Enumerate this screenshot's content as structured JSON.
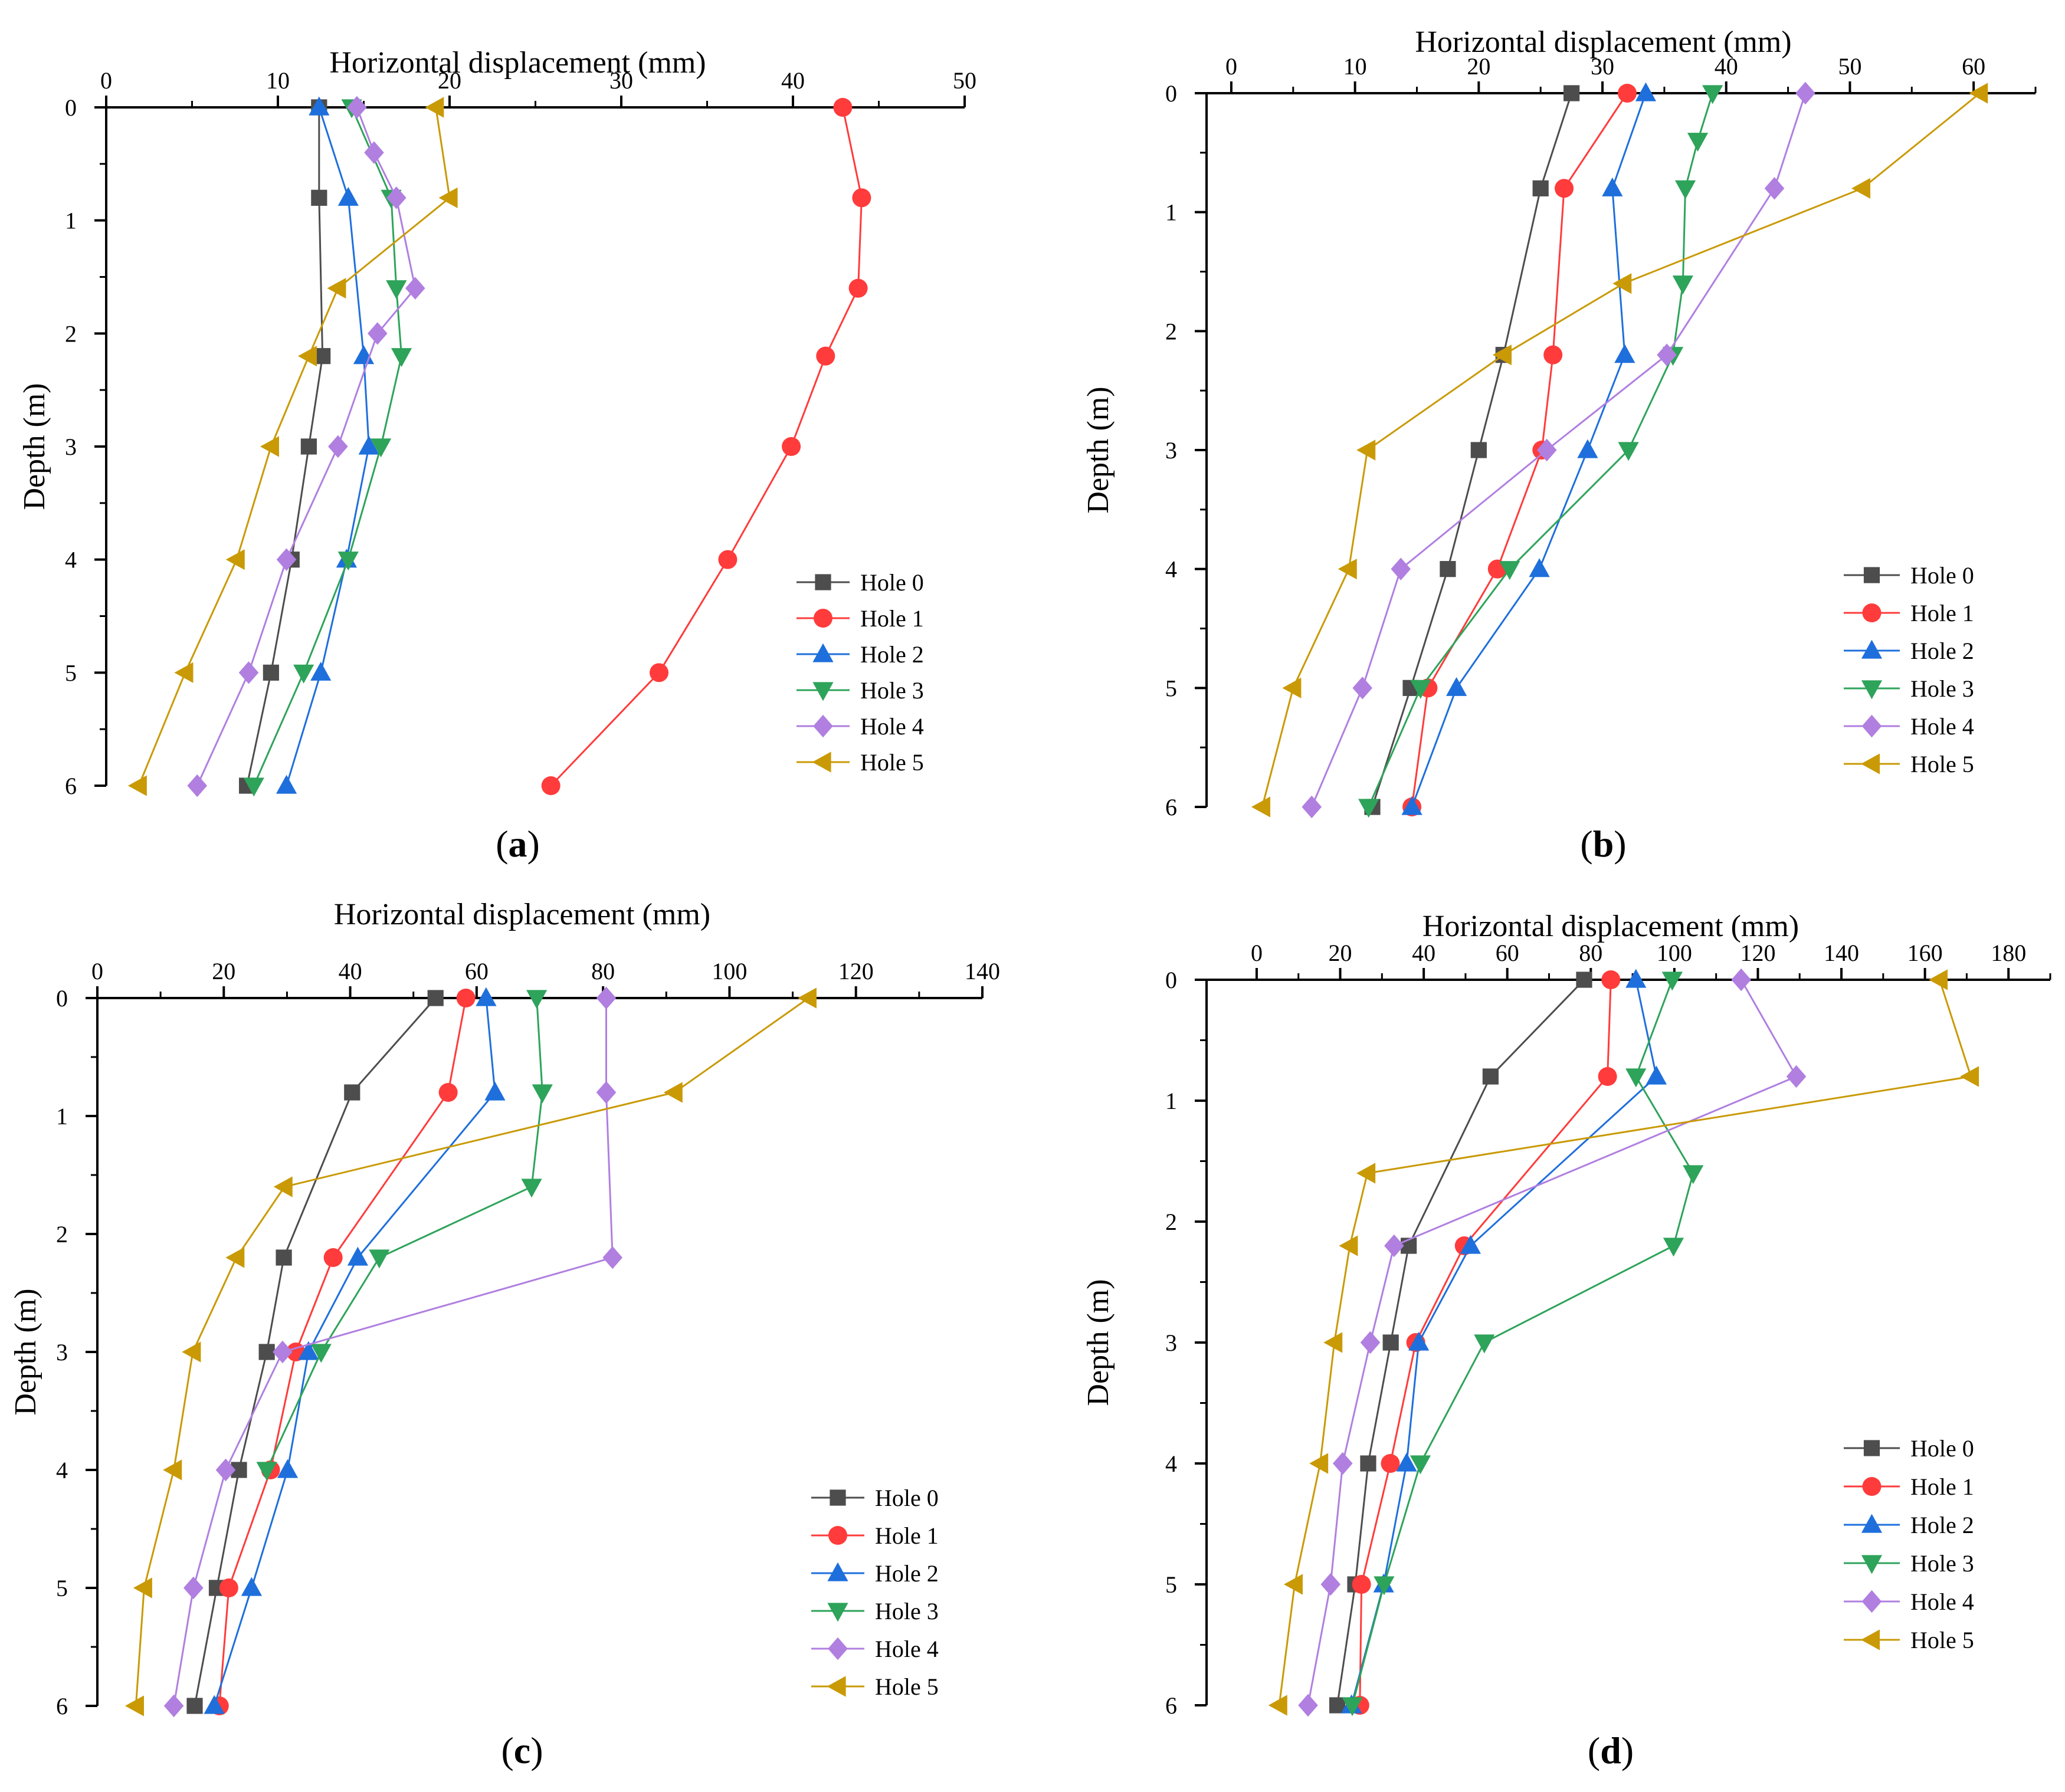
{
  "chart_data": [
    {
      "type": "line",
      "panel_label": "a",
      "xlabel": "Horizontal displacement (mm)",
      "ylabel": "Depth (m)",
      "xlim": [
        0,
        50
      ],
      "ylim": [
        0,
        6
      ],
      "x_ticks": [
        0,
        10,
        20,
        30,
        40,
        50
      ],
      "y_ticks": [
        0,
        1,
        2,
        3,
        4,
        5,
        6
      ],
      "legend_position": "bottom-right",
      "depth": [
        0,
        0.8,
        1.6,
        2.2,
        3,
        4,
        5,
        6
      ],
      "series": [
        {
          "name": "Hole  0",
          "color": "#4d4d4d",
          "marker": "square",
          "points": [
            [
              12.4,
              0
            ],
            [
              12.4,
              0.8
            ],
            [
              12.6,
              2.2
            ],
            [
              11.8,
              3
            ],
            [
              10.8,
              4
            ],
            [
              9.6,
              5
            ],
            [
              8.2,
              6
            ]
          ]
        },
        {
          "name": "Hole  1",
          "color": "#ff3b3b",
          "marker": "circle",
          "points": [
            [
              42.9,
              0
            ],
            [
              44,
              0.8
            ],
            [
              43.8,
              1.6
            ],
            [
              41.9,
              2.2
            ],
            [
              39.9,
              3
            ],
            [
              36.2,
              4
            ],
            [
              32.2,
              5
            ],
            [
              25.9,
              6
            ]
          ]
        },
        {
          "name": "Hole  2",
          "color": "#1e6fdc",
          "marker": "triangle-up",
          "points": [
            [
              12.4,
              0
            ],
            [
              14.1,
              0.8
            ],
            [
              15,
              2.2
            ],
            [
              15.3,
              3
            ],
            [
              14,
              4
            ],
            [
              12.5,
              5
            ],
            [
              10.5,
              6
            ]
          ]
        },
        {
          "name": "Hole  3",
          "color": "#2ea35a",
          "marker": "triangle-down",
          "points": [
            [
              14.3,
              0
            ],
            [
              16.6,
              0.8
            ],
            [
              16.9,
              1.6
            ],
            [
              17.2,
              2.2
            ],
            [
              16,
              3
            ],
            [
              14.1,
              4
            ],
            [
              11.5,
              5
            ],
            [
              8.6,
              6
            ]
          ]
        },
        {
          "name": "Hole  4",
          "color": "#b07fe0",
          "marker": "diamond",
          "points": [
            [
              14.6,
              0
            ],
            [
              15.6,
              0.4
            ],
            [
              16.9,
              0.8
            ],
            [
              18,
              1.6
            ],
            [
              15.8,
              2
            ],
            [
              13.5,
              3
            ],
            [
              10.5,
              4
            ],
            [
              8.3,
              5
            ],
            [
              5.3,
              6
            ]
          ]
        },
        {
          "name": "Hole  5",
          "color": "#c99a06",
          "marker": "triangle-left",
          "points": [
            [
              19.2,
              0
            ],
            [
              20,
              0.8
            ],
            [
              13.5,
              1.6
            ],
            [
              11.8,
              2.2
            ],
            [
              9.6,
              3
            ],
            [
              7.6,
              4
            ],
            [
              4.6,
              5
            ],
            [
              1.9,
              6
            ]
          ]
        }
      ]
    },
    {
      "type": "line",
      "panel_label": "b",
      "xlabel": "Horizontal displacement (mm)",
      "ylabel": "Depth (m)",
      "xlim": [
        -2,
        65
      ],
      "ylim": [
        0,
        6
      ],
      "x_ticks": [
        0,
        10,
        20,
        30,
        40,
        50,
        60
      ],
      "y_ticks": [
        0,
        1,
        2,
        3,
        4,
        5,
        6
      ],
      "legend_position": "bottom-right",
      "series": [
        {
          "name": "Hole 0",
          "color": "#4d4d4d",
          "marker": "square",
          "points": [
            [
              27.5,
              0
            ],
            [
              25,
              0.8
            ],
            [
              22,
              2.2
            ],
            [
              20,
              3
            ],
            [
              17.5,
              4
            ],
            [
              14.5,
              5
            ],
            [
              11.4,
              6
            ]
          ]
        },
        {
          "name": "Hole 1",
          "color": "#ff3b3b",
          "marker": "circle",
          "points": [
            [
              32,
              0
            ],
            [
              26.9,
              0.8
            ],
            [
              26,
              2.2
            ],
            [
              25.1,
              3
            ],
            [
              21.5,
              4
            ],
            [
              15.9,
              5
            ],
            [
              14.6,
              6
            ]
          ]
        },
        {
          "name": "Hole 2",
          "color": "#1e6fdc",
          "marker": "triangle-up",
          "points": [
            [
              33.5,
              0
            ],
            [
              30.8,
              0.8
            ],
            [
              31.8,
              2.2
            ],
            [
              28.8,
              3
            ],
            [
              24.9,
              4
            ],
            [
              18.2,
              5
            ],
            [
              14.6,
              6
            ]
          ]
        },
        {
          "name": "Hole 3",
          "color": "#2ea35a",
          "marker": "triangle-down",
          "points": [
            [
              38.9,
              0
            ],
            [
              37.7,
              0.4
            ],
            [
              36.7,
              0.8
            ],
            [
              36.5,
              1.6
            ],
            [
              35.7,
              2.2
            ],
            [
              32.1,
              3
            ],
            [
              22.5,
              4
            ],
            [
              15.3,
              5
            ],
            [
              11.1,
              6
            ]
          ]
        },
        {
          "name": "Hole 4",
          "color": "#b07fe0",
          "marker": "diamond",
          "points": [
            [
              46.4,
              0
            ],
            [
              43.9,
              0.8
            ],
            [
              35.2,
              2.2
            ],
            [
              25.5,
              3
            ],
            [
              13.7,
              4
            ],
            [
              10.6,
              5
            ],
            [
              6.5,
              6
            ]
          ]
        },
        {
          "name": "Hole 5",
          "color": "#c99a06",
          "marker": "triangle-left",
          "points": [
            [
              60.5,
              0
            ],
            [
              51,
              0.8
            ],
            [
              31.7,
              1.6
            ],
            [
              22,
              2.2
            ],
            [
              11,
              3
            ],
            [
              9.5,
              4
            ],
            [
              5,
              5
            ],
            [
              2.5,
              6
            ]
          ]
        }
      ]
    },
    {
      "type": "line",
      "panel_label": "c",
      "xlabel": "Horizontal displacement (mm)",
      "ylabel": "Depth (m)",
      "xlim": [
        0,
        140
      ],
      "ylim": [
        0,
        6
      ],
      "x_ticks": [
        0,
        20,
        40,
        60,
        80,
        100,
        120,
        140
      ],
      "y_ticks": [
        0,
        1,
        2,
        3,
        4,
        5,
        6
      ],
      "legend_position": "bottom-right",
      "series": [
        {
          "name": "Hole  0",
          "color": "#4d4d4d",
          "marker": "square",
          "points": [
            [
              53.5,
              0
            ],
            [
              40.3,
              0.8
            ],
            [
              29.5,
              2.2
            ],
            [
              26.8,
              3
            ],
            [
              22.4,
              4
            ],
            [
              18.9,
              5
            ],
            [
              15.4,
              6
            ]
          ]
        },
        {
          "name": "Hole  1",
          "color": "#ff3b3b",
          "marker": "circle",
          "points": [
            [
              58.3,
              0
            ],
            [
              55.5,
              0.8
            ],
            [
              37.3,
              2.2
            ],
            [
              31.4,
              3
            ],
            [
              27.4,
              4
            ],
            [
              20.8,
              5
            ],
            [
              19.3,
              6
            ]
          ]
        },
        {
          "name": "Hole  2",
          "color": "#1e6fdc",
          "marker": "triangle-up",
          "points": [
            [
              61.5,
              0
            ],
            [
              62.9,
              0.8
            ],
            [
              41.2,
              2.2
            ],
            [
              33.4,
              3
            ],
            [
              30.1,
              4
            ],
            [
              24.4,
              5
            ],
            [
              18.5,
              6
            ]
          ]
        },
        {
          "name": "Hole  3",
          "color": "#2ea35a",
          "marker": "triangle-down",
          "points": [
            [
              69.5,
              0
            ],
            [
              70.4,
              0.8
            ],
            [
              68.7,
              1.6
            ],
            [
              44.6,
              2.2
            ],
            [
              35.4,
              3
            ],
            [
              26.8,
              4
            ]
          ]
        },
        {
          "name": "Hole  4",
          "color": "#b07fe0",
          "marker": "diamond",
          "points": [
            [
              80.5,
              0
            ],
            [
              80.5,
              0.8
            ],
            [
              81.5,
              2.2
            ],
            [
              29.3,
              3
            ],
            [
              20.3,
              4
            ],
            [
              15.2,
              5
            ],
            [
              12.1,
              6
            ]
          ]
        },
        {
          "name": "Hole  5",
          "color": "#c99a06",
          "marker": "triangle-left",
          "points": [
            [
              112.5,
              0
            ],
            [
              91.3,
              0.8
            ],
            [
              29.6,
              1.6
            ],
            [
              22,
              2.2
            ],
            [
              15.1,
              3
            ],
            [
              12.1,
              4
            ],
            [
              7.4,
              5
            ],
            [
              6.1,
              6
            ]
          ]
        }
      ]
    },
    {
      "type": "line",
      "panel_label": "d",
      "xlabel": "Horizontal displacement (mm)",
      "ylabel": "Depth (m)",
      "xlim": [
        -12,
        190
      ],
      "ylim": [
        0,
        6
      ],
      "x_ticks": [
        0,
        20,
        40,
        60,
        80,
        100,
        120,
        140,
        160,
        180
      ],
      "y_ticks": [
        0,
        1,
        2,
        3,
        4,
        5,
        6
      ],
      "legend_position": "bottom-right",
      "series": [
        {
          "name": "Hole 0",
          "color": "#4d4d4d",
          "marker": "square",
          "points": [
            [
              78.4,
              0
            ],
            [
              56,
              0.8
            ],
            [
              36.4,
              2.2
            ],
            [
              32.1,
              3
            ],
            [
              26.7,
              4
            ],
            [
              23.6,
              5
            ],
            [
              19.3,
              6
            ]
          ]
        },
        {
          "name": "Hole 1",
          "color": "#ff3b3b",
          "marker": "circle",
          "points": [
            [
              84.8,
              0
            ],
            [
              84,
              0.8
            ],
            [
              49.7,
              2.2
            ],
            [
              38.1,
              3
            ],
            [
              32,
              4
            ],
            [
              25.1,
              5
            ],
            [
              24.7,
              6
            ]
          ]
        },
        {
          "name": "Hole 2",
          "color": "#1e6fdc",
          "marker": "triangle-up",
          "points": [
            [
              90.8,
              0
            ],
            [
              95.7,
              0.8
            ],
            [
              51.2,
              2.2
            ],
            [
              38.8,
              3
            ],
            [
              35.9,
              4
            ],
            [
              30.4,
              5
            ],
            [
              22.7,
              6
            ]
          ]
        },
        {
          "name": "Hole 3",
          "color": "#2ea35a",
          "marker": "triangle-down",
          "points": [
            [
              99.5,
              0
            ],
            [
              90.8,
              0.8
            ],
            [
              104.5,
              1.6
            ],
            [
              99.8,
              2.2
            ],
            [
              54.5,
              3
            ],
            [
              39.2,
              4
            ],
            [
              30.5,
              5
            ],
            [
              22.9,
              6
            ]
          ]
        },
        {
          "name": "Hole 4",
          "color": "#b07fe0",
          "marker": "diamond",
          "points": [
            [
              116,
              0
            ],
            [
              129.2,
              0.8
            ],
            [
              32.9,
              2.2
            ],
            [
              27.2,
              3
            ],
            [
              20.6,
              4
            ],
            [
              17.7,
              5
            ],
            [
              12.3,
              6
            ]
          ]
        },
        {
          "name": "Hole 5",
          "color": "#c99a06",
          "marker": "triangle-left",
          "points": [
            [
              163.5,
              0
            ],
            [
              171,
              0.8
            ],
            [
              26.5,
              1.6
            ],
            [
              22.3,
              2.2
            ],
            [
              18.6,
              3
            ],
            [
              15.2,
              4
            ],
            [
              9.1,
              5
            ],
            [
              5.4,
              6
            ]
          ]
        }
      ]
    }
  ]
}
